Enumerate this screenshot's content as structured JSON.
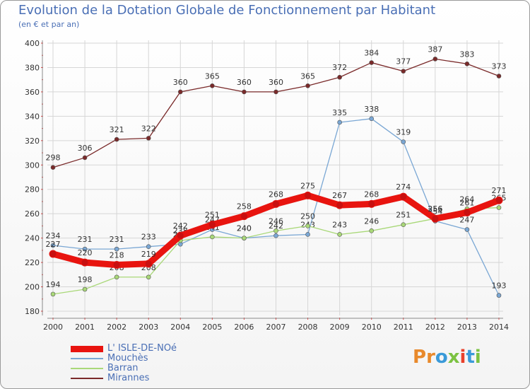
{
  "header": {
    "title": "Evolution de la Dotation Globale de Fonctionnement par Habitant",
    "subtitle": "(en € et par an)"
  },
  "logo": {
    "text": "Proxiti",
    "letters": [
      "P",
      "r",
      "o",
      "x",
      "i",
      "t",
      "i"
    ],
    "colors": [
      "#e8892b",
      "#e8892b",
      "#3a9ad9",
      "#7cc242",
      "#e8402b",
      "#3a9ad9",
      "#7cc242"
    ]
  },
  "chart_data": {
    "type": "line",
    "title": "Evolution de la Dotation Globale de Fonctionnement par Habitant",
    "subtitle": "(en € et par an)",
    "x": [
      "2000",
      "2001",
      "2002",
      "2003",
      "2004",
      "2005",
      "2006",
      "2007",
      "2008",
      "2009",
      "2010",
      "2011",
      "2012",
      "2013",
      "2014"
    ],
    "ylim": [
      180,
      400
    ],
    "yticks": [
      180,
      200,
      220,
      240,
      260,
      280,
      300,
      320,
      340,
      360,
      380,
      400
    ],
    "grid": true,
    "legend_position": "bottom-left",
    "series": [
      {
        "name": "L' ISLE-DE-NOé",
        "color": "#e8140f",
        "emphasis": true,
        "values": [
          227,
          220,
          218,
          219,
          242,
          251,
          258,
          268,
          275,
          267,
          268,
          274,
          256,
          261,
          271
        ]
      },
      {
        "name": "Mouchès",
        "color": "#7aa7d4",
        "emphasis": false,
        "values": [
          234,
          231,
          231,
          233,
          235,
          247,
          240,
          242,
          243,
          335,
          338,
          319,
          254,
          247,
          193
        ]
      },
      {
        "name": "Barran",
        "color": "#a9d878",
        "emphasis": false,
        "values": [
          194,
          198,
          208,
          208,
          238,
          241,
          240,
          246,
          250,
          243,
          246,
          251,
          256,
          264,
          265
        ]
      },
      {
        "name": "Mirannes",
        "color": "#7a2a2a",
        "emphasis": false,
        "values": [
          298,
          306,
          321,
          322,
          360,
          365,
          360,
          360,
          365,
          372,
          384,
          377,
          387,
          383,
          373
        ]
      }
    ]
  }
}
